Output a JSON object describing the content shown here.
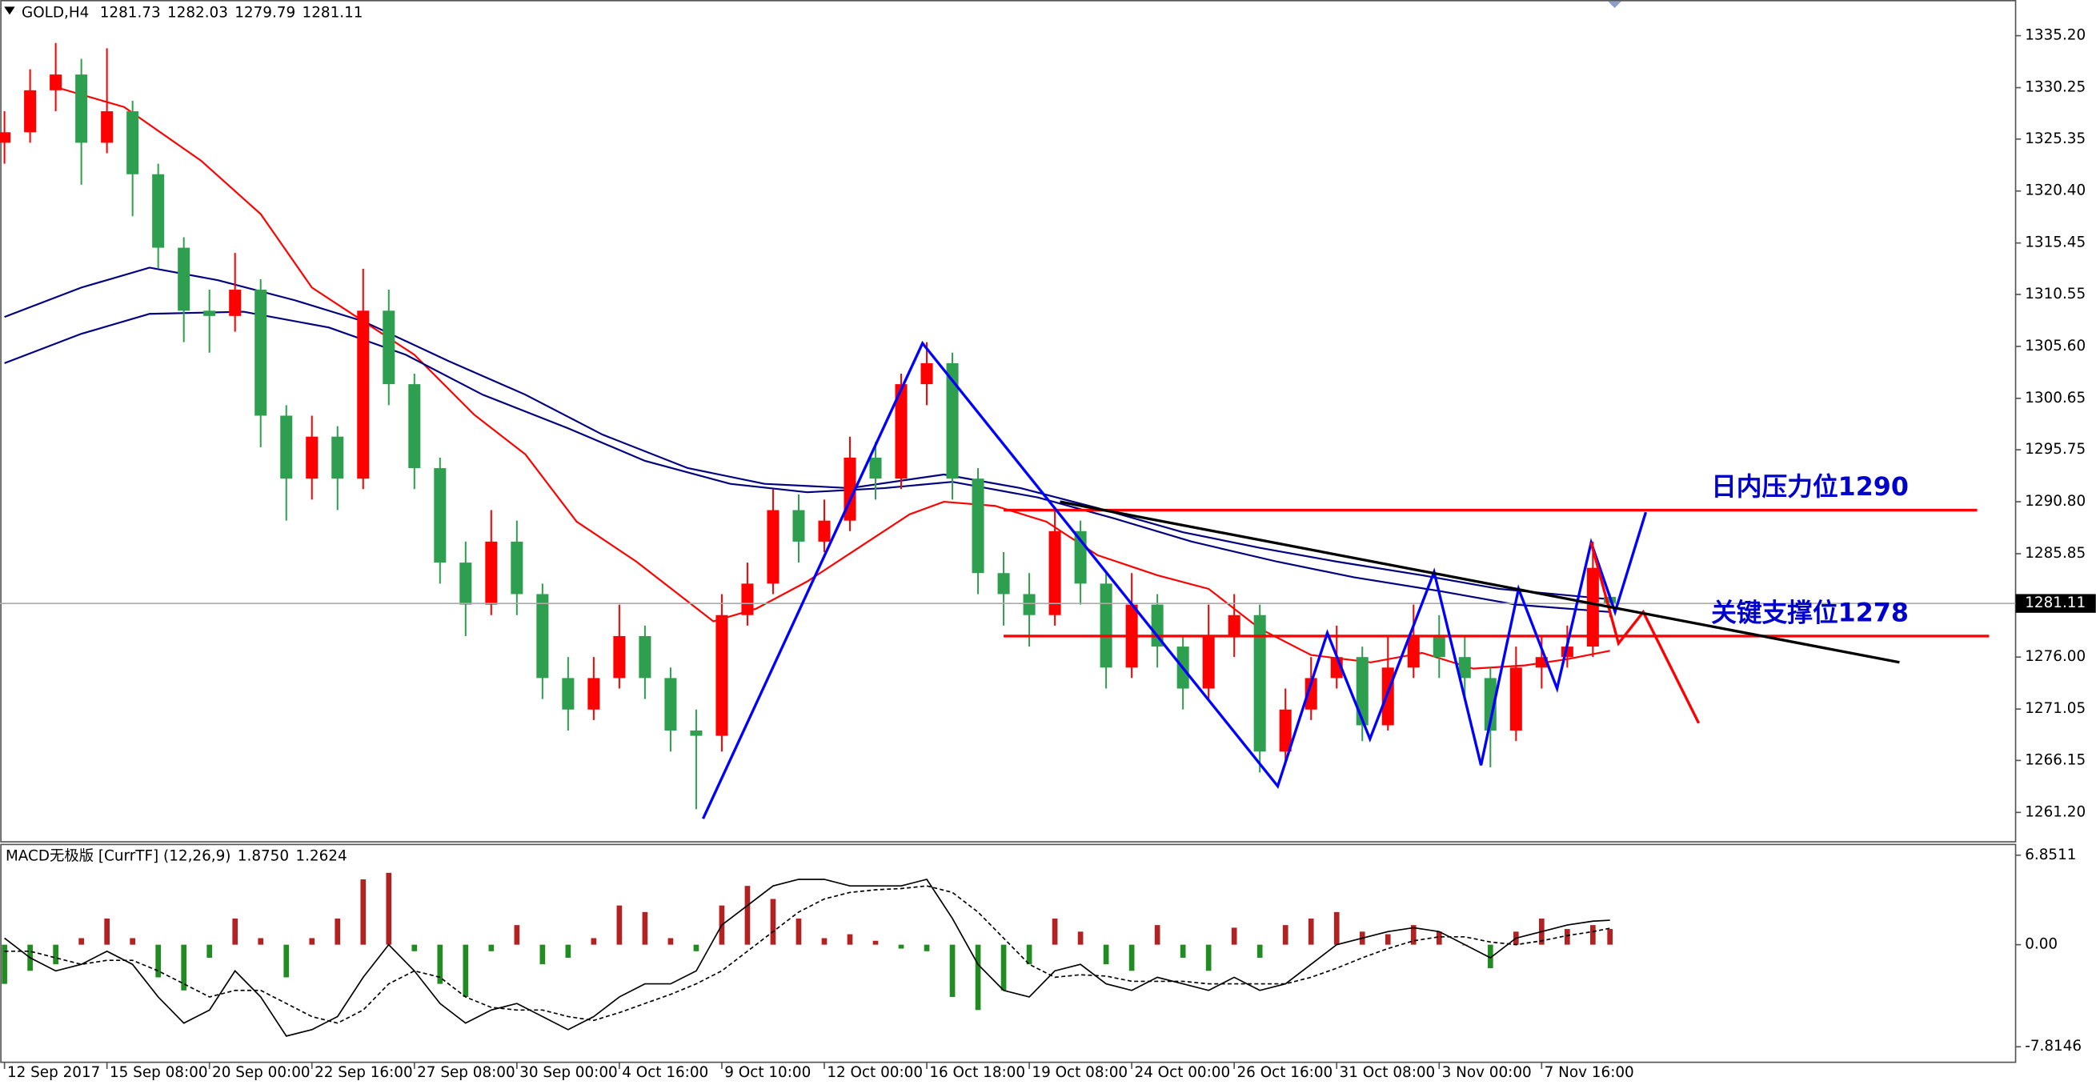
{
  "chart_data": [
    {
      "type": "candlestick",
      "title": "GOLD,H4",
      "xlim": [
        -0.5,
        235.5
      ],
      "ylim": [
        1258.4,
        1338.6
      ],
      "up_color": "#ff0000",
      "down_color": "#2e9e4f",
      "x": [
        0,
        3,
        6,
        9,
        12,
        15,
        18,
        21,
        24,
        27,
        30,
        33,
        36,
        39,
        42,
        45,
        48,
        51,
        54,
        57,
        60,
        63,
        66,
        69,
        72,
        75,
        78,
        81,
        84,
        87,
        90,
        93,
        96,
        99,
        102,
        105,
        108,
        111,
        114,
        117,
        120,
        123,
        126,
        129,
        132,
        135,
        138,
        141,
        144,
        147,
        150,
        153,
        156,
        159,
        162,
        165,
        168,
        171,
        174,
        177,
        180,
        183,
        186,
        188
      ],
      "open": [
        1325,
        1326,
        1330,
        1331.5,
        1325,
        1328,
        1322,
        1315,
        1309,
        1308.5,
        1311,
        1299,
        1293,
        1297,
        1293,
        1309,
        1302,
        1294,
        1285,
        1281,
        1287,
        1282,
        1274,
        1271,
        1274,
        1278,
        1274,
        1269,
        1268.5,
        1280,
        1283,
        1290,
        1287,
        1289,
        1295,
        1293,
        1302,
        1304,
        1293,
        1284,
        1282,
        1280,
        1288,
        1283,
        1275,
        1281,
        1277,
        1273,
        1278,
        1280,
        1267,
        1271,
        1274,
        1276,
        1269.5,
        1275,
        1278,
        1276,
        1274,
        1269,
        1275,
        1276,
        1277,
        1281.73
      ],
      "high": [
        1328,
        1332,
        1334.5,
        1333,
        1334,
        1329,
        1323,
        1316,
        1311,
        1314.5,
        1312,
        1300,
        1299,
        1298,
        1313,
        1311,
        1303,
        1295,
        1287,
        1290,
        1289,
        1283,
        1276,
        1276,
        1281,
        1279,
        1275,
        1271,
        1282,
        1285,
        1292,
        1291.5,
        1291,
        1297,
        1296.5,
        1303,
        1306,
        1305,
        1294,
        1286,
        1284,
        1290,
        1289,
        1284,
        1284,
        1282,
        1278,
        1281,
        1282,
        1281,
        1273,
        1276,
        1279,
        1277,
        1278,
        1281,
        1280,
        1278,
        1275,
        1277,
        1278,
        1279,
        1287,
        1282.03
      ],
      "low": [
        1323,
        1325,
        1328,
        1321,
        1324,
        1318,
        1313,
        1306,
        1305,
        1307,
        1296,
        1289,
        1291,
        1290,
        1292,
        1300,
        1292,
        1283,
        1278,
        1280,
        1280,
        1272,
        1269,
        1270,
        1273,
        1272,
        1267,
        1261.5,
        1267,
        1279,
        1282,
        1285,
        1286,
        1288,
        1291,
        1292,
        1300,
        1291,
        1282,
        1279,
        1277,
        1279,
        1281,
        1273,
        1274,
        1275,
        1271,
        1272,
        1276,
        1265,
        1266,
        1270,
        1273,
        1268,
        1269,
        1274,
        1274,
        1272,
        1265.5,
        1268,
        1273,
        1275,
        1276,
        1279.79
      ],
      "close": [
        1326,
        1330,
        1331.5,
        1325,
        1328,
        1322,
        1315,
        1309,
        1308.5,
        1311,
        1299,
        1293,
        1297,
        1293,
        1309,
        1302,
        1294,
        1285,
        1281,
        1287,
        1282,
        1274,
        1271,
        1274,
        1278,
        1274,
        1269,
        1268.5,
        1280,
        1283,
        1290,
        1287,
        1289,
        1295,
        1293,
        1302,
        1304,
        1293,
        1284,
        1282,
        1280,
        1288,
        1283,
        1275,
        1281,
        1277,
        1273,
        1278,
        1280,
        1267,
        1271,
        1274,
        1276,
        1269.5,
        1275,
        1278,
        1276,
        1274,
        1269,
        1275,
        1276,
        1277,
        1284.5,
        1281.11
      ],
      "moving_averages": [
        {
          "color": "#ff0000",
          "x": [
            6,
            14,
            23,
            30,
            36,
            42,
            48,
            55,
            61,
            67,
            74,
            80,
            83,
            88,
            94,
            100,
            106,
            110,
            116,
            122,
            128,
            135,
            141,
            147,
            153,
            160,
            166,
            172,
            178,
            183,
            188
          ],
          "values": [
            1330.3,
            1328.4,
            1323.3,
            1318.2,
            1311.2,
            1308,
            1304.8,
            1299.1,
            1295.3,
            1288.9,
            1285.1,
            1281.3,
            1279.4,
            1280.6,
            1283.2,
            1286.4,
            1289.6,
            1290.8,
            1290.4,
            1288.9,
            1285.7,
            1283.8,
            1282.5,
            1278.7,
            1276.2,
            1275.5,
            1276.4,
            1274.9,
            1275.2,
            1275.8,
            1276.6
          ]
        },
        {
          "color": "#000080",
          "x": [
            0,
            9,
            17,
            25,
            34,
            42,
            52,
            61,
            70,
            80,
            89,
            99,
            110,
            119,
            128,
            138,
            147,
            156,
            166,
            175,
            188
          ],
          "values": [
            1308.4,
            1311.2,
            1313.1,
            1311.9,
            1310,
            1308,
            1304.2,
            1301,
            1297.2,
            1294,
            1292.5,
            1292.1,
            1293.4,
            1292.1,
            1290.2,
            1287.9,
            1286.4,
            1285.1,
            1283.8,
            1282.5,
            1281.5
          ]
        },
        {
          "color": "#000080",
          "x": [
            0,
            9,
            17,
            28,
            38,
            47,
            56,
            66,
            75,
            85,
            94,
            103,
            111,
            121,
            130,
            139,
            149,
            158,
            168,
            177,
            188
          ],
          "values": [
            1304,
            1306.8,
            1308.7,
            1308.9,
            1307.4,
            1304.8,
            1301,
            1297.8,
            1294.7,
            1292.5,
            1291.7,
            1292.1,
            1292.7,
            1291.2,
            1289.2,
            1287,
            1285.1,
            1283.6,
            1282.3,
            1281,
            1280.3
          ]
        }
      ],
      "drawings": [
        {
          "color": "#0000ff",
          "x": [
            81.8,
            107.5,
            149.1,
            154.9,
            159.9,
            167.4,
            172.9,
            177.3,
            181.8,
            185.8,
            188.6,
            192.2
          ],
          "values": [
            1260.6,
            1305.9,
            1263.7,
            1278.3,
            1268.2,
            1284.1,
            1265.7,
            1282.5,
            1273,
            1286.9,
            1280.3,
            1289.8
          ]
        },
        {
          "color": "#ff0000",
          "x": [
            185.8,
            189,
            191.9,
            198.4
          ],
          "values": [
            1286.9,
            1277.3,
            1280.3,
            1269.7
          ]
        },
        {
          "color": "#000000",
          "x": [
            123.6,
            221.9
          ],
          "values": [
            1290.8,
            1275.5
          ]
        }
      ],
      "levels": [
        {
          "label": "日内压力位1290",
          "value": 1290,
          "x": [
            117,
            231
          ],
          "color": "#ff0000"
        },
        {
          "label": "关键支撑位1278",
          "value": 1278,
          "x": [
            117,
            232.4
          ],
          "color": "#ff0000"
        }
      ],
      "yticks": [
        {
          "value": 1335.2,
          "label": "1335.20"
        },
        {
          "value": 1330.25,
          "label": "1330.25"
        },
        {
          "value": 1325.35,
          "label": "1325.35"
        },
        {
          "value": 1320.4,
          "label": "1320.40"
        },
        {
          "value": 1315.45,
          "label": "1315.45"
        },
        {
          "value": 1310.55,
          "label": "1310.55"
        },
        {
          "value": 1305.6,
          "label": "1305.60"
        },
        {
          "value": 1300.65,
          "label": "1300.65"
        },
        {
          "value": 1295.75,
          "label": "1295.75"
        },
        {
          "value": 1290.8,
          "label": "1290.80"
        },
        {
          "value": 1285.85,
          "label": "1285.85"
        },
        {
          "value": 1276,
          "label": "1276.00"
        },
        {
          "value": 1271.05,
          "label": "1271.05"
        },
        {
          "value": 1266.15,
          "label": "1266.15"
        },
        {
          "value": 1261.2,
          "label": "1261.20"
        }
      ]
    },
    {
      "type": "macd",
      "title": "MACD无极版 [CurrTF] (12,26,9)",
      "header_values": [
        {
          "value": 1.875,
          "label": "1.8750"
        },
        {
          "value": 1.2624,
          "label": "1.2624"
        }
      ],
      "xlim": [
        -0.5,
        235.5
      ],
      "ylim": [
        -9.0,
        7.67
      ],
      "positive_color": "#b22222",
      "negative_color": "#228b22",
      "macd_color": "#000000",
      "signal_color": "#000000",
      "x": [
        0,
        3,
        6,
        9,
        12,
        15,
        18,
        21,
        24,
        27,
        30,
        33,
        36,
        39,
        42,
        45,
        48,
        51,
        54,
        57,
        60,
        63,
        66,
        69,
        72,
        75,
        78,
        81,
        84,
        87,
        90,
        93,
        96,
        99,
        102,
        105,
        108,
        111,
        114,
        117,
        120,
        123,
        126,
        129,
        132,
        135,
        138,
        141,
        144,
        147,
        150,
        153,
        156,
        159,
        162,
        165,
        168,
        171,
        174,
        177,
        180,
        183,
        186,
        188
      ],
      "histogram": [
        -3,
        -2,
        -1.5,
        0.5,
        2,
        0.5,
        -2.5,
        -3.5,
        -1,
        2,
        0.5,
        -2.5,
        0.5,
        2,
        5,
        5.5,
        -0.5,
        -3,
        -4,
        -0.5,
        1.5,
        -1.5,
        -1,
        0.5,
        3,
        2.5,
        0.5,
        -0.5,
        3,
        4.5,
        3.5,
        2,
        0.5,
        0.8,
        0.3,
        -0.3,
        -0.5,
        -4,
        -5,
        -3.5,
        -1.5,
        2,
        1,
        -1.5,
        -2,
        1.5,
        -1,
        -2,
        1.3,
        -1,
        1.5,
        2,
        2.5,
        1,
        0.8,
        1.5,
        1,
        0,
        -1.8,
        1,
        2,
        1.2,
        1.5,
        1.2
      ],
      "macd": [
        0.5,
        -1,
        -2,
        -1.5,
        -0.5,
        -1.5,
        -4,
        -6,
        -5,
        -2,
        -4,
        -7,
        -6.5,
        -5.5,
        -2.5,
        0,
        -2,
        -4.5,
        -6,
        -5,
        -4.5,
        -5.5,
        -6.5,
        -5.5,
        -4,
        -3,
        -3,
        -2,
        1.5,
        3,
        4.5,
        5,
        5,
        4.5,
        4.5,
        4.5,
        5,
        2,
        -1.5,
        -3.5,
        -4,
        -2,
        -1.5,
        -3,
        -3.5,
        -2.5,
        -3,
        -3.5,
        -2.5,
        -3.5,
        -3,
        -1.5,
        0,
        0.5,
        1,
        1.3,
        1,
        0,
        -1,
        0.5,
        1,
        1.5,
        1.8,
        1.875
      ],
      "signal": [
        -0.5,
        -0.5,
        -1,
        -1.5,
        -1.2,
        -1.2,
        -2,
        -3,
        -4,
        -3.5,
        -3.5,
        -4.5,
        -5.5,
        -6,
        -5,
        -3,
        -2,
        -2.5,
        -4,
        -4.8,
        -5,
        -5,
        -5.5,
        -5.8,
        -5.2,
        -4.5,
        -3.8,
        -3,
        -2,
        -0.5,
        1,
        2.5,
        3.5,
        4,
        4.2,
        4.3,
        4.5,
        4,
        2.5,
        0.5,
        -1.5,
        -2.5,
        -2.3,
        -2.4,
        -2.8,
        -2.8,
        -2.8,
        -3,
        -3,
        -3,
        -3,
        -2.5,
        -1.8,
        -1,
        -0.3,
        0.3,
        0.6,
        0.6,
        0.2,
        0,
        0.3,
        0.7,
        1,
        1.2624
      ],
      "yticks": [
        6.8511,
        {
          "value": 0,
          "label": "0.00"
        },
        -7.8146
      ],
      "xticks": [
        {
          "value": 0,
          "label": "12 Sep 2017"
        },
        {
          "value": 12,
          "label": "15 Sep 08:00"
        },
        {
          "value": 24,
          "label": "20 Sep 00:00"
        },
        {
          "value": 36,
          "label": "22 Sep 16:00"
        },
        {
          "value": 48,
          "label": "27 Sep 08:00"
        },
        {
          "value": 60,
          "label": "30 Sep 00:00"
        },
        {
          "value": 72,
          "label": "4 Oct 16:00"
        },
        {
          "value": 84,
          "label": "9 Oct 10:00"
        },
        {
          "value": 96,
          "label": "12 Oct 00:00"
        },
        {
          "value": 108,
          "label": "16 Oct 18:00"
        },
        {
          "value": 120,
          "label": "19 Oct 08:00"
        },
        {
          "value": 132,
          "label": "24 Oct 00:00"
        },
        {
          "value": 144,
          "label": "26 Oct 16:00"
        },
        {
          "value": 156,
          "label": "31 Oct 08:00"
        },
        {
          "value": 168,
          "label": "3 Nov 00:00"
        },
        {
          "value": 180,
          "label": "7 Nov 16:00"
        }
      ]
    }
  ]
}
